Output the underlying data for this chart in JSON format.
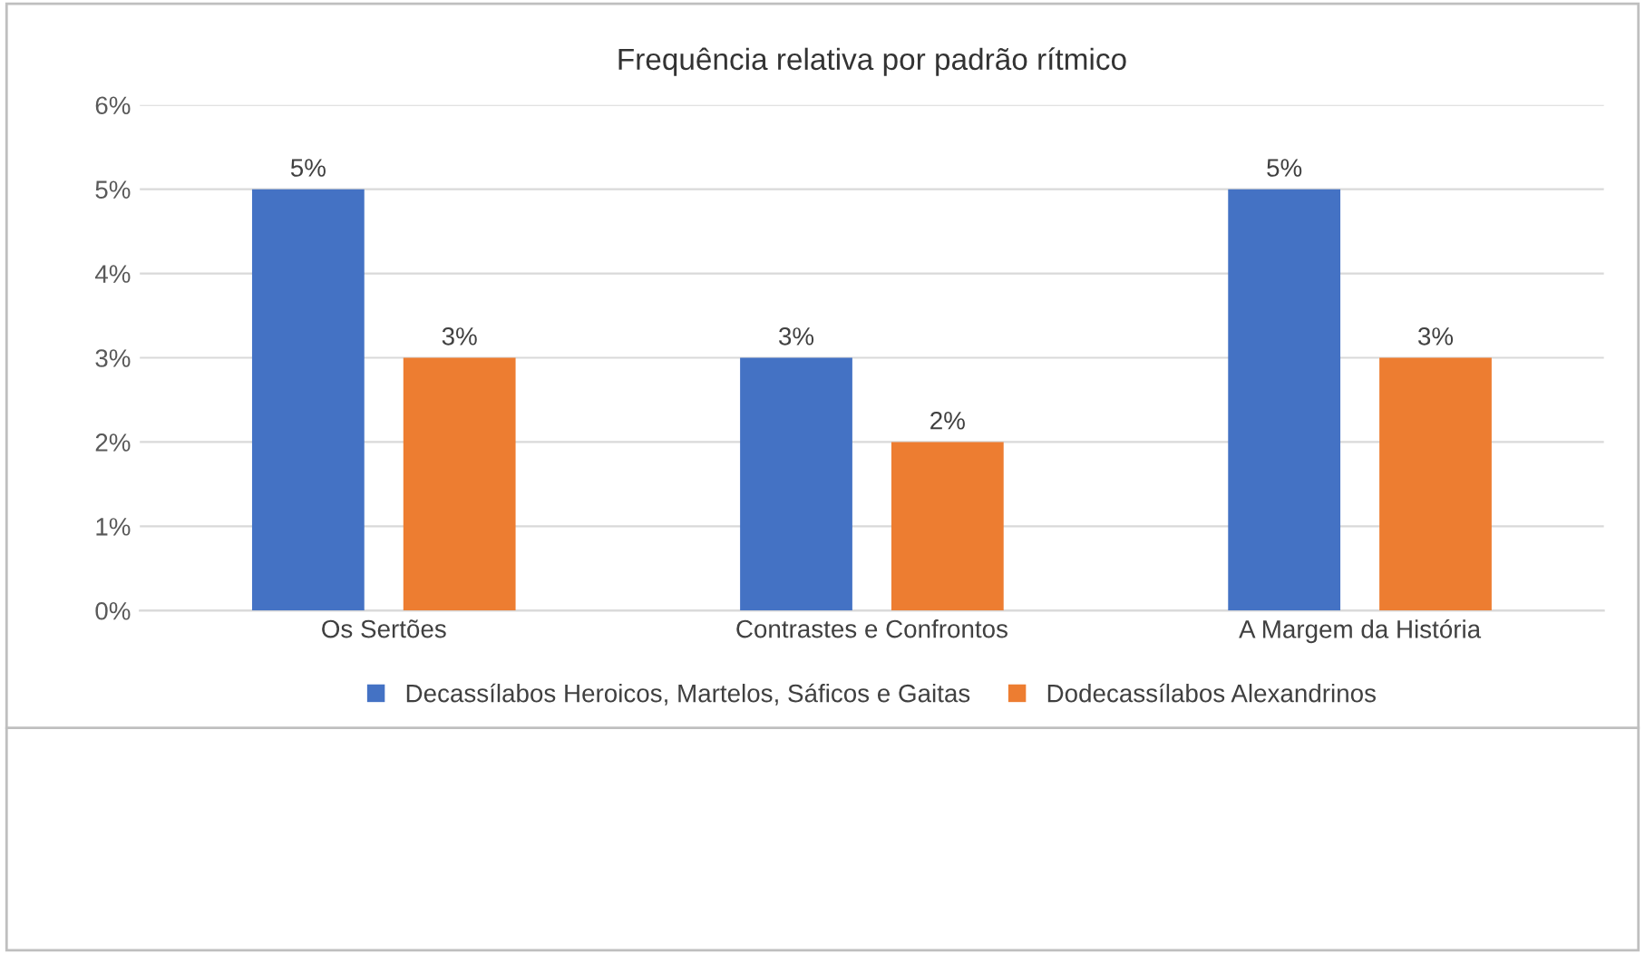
{
  "chart_data": {
    "type": "bar",
    "title": "Frequência relativa por padrão rítmico",
    "categories": [
      "Os Sertões",
      "Contrastes e Confrontos",
      "A Margem da História"
    ],
    "series": [
      {
        "name": "Decassílabos Heroicos, Martelos, Sáficos e Gaitas",
        "color": "#4472c4",
        "values": [
          5,
          3,
          5
        ],
        "value_labels": [
          "5%",
          "3%",
          "5%"
        ]
      },
      {
        "name": "Dodecassílabos Alexandrinos",
        "color": "#ed7d31",
        "values": [
          3,
          2,
          3
        ],
        "value_labels": [
          "3%",
          "2%",
          "3%"
        ]
      }
    ],
    "ylim": [
      0,
      6
    ],
    "yticks": [
      {
        "value": 0,
        "label": "0%"
      },
      {
        "value": 1,
        "label": "1%"
      },
      {
        "value": 2,
        "label": "2%"
      },
      {
        "value": 3,
        "label": "3%"
      },
      {
        "value": 4,
        "label": "4%"
      },
      {
        "value": 5,
        "label": "5%"
      },
      {
        "value": 6,
        "label": "6%"
      }
    ],
    "grid": "y",
    "legend": "bottom"
  }
}
